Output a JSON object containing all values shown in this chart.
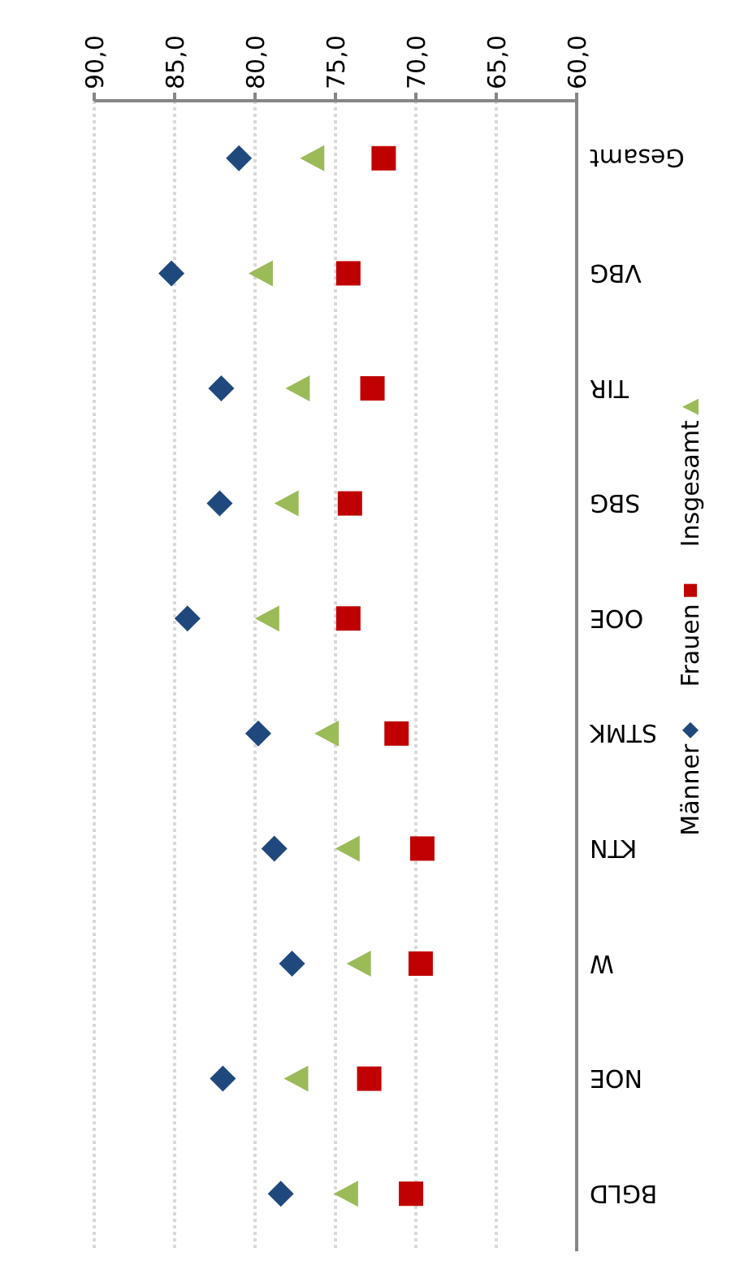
{
  "chart_data": {
    "type": "scatter",
    "orientation": "horizontal",
    "categories": [
      "Gesamt",
      "VBG",
      "TIR",
      "SBG",
      "OOE",
      "STMK",
      "KTN",
      "W",
      "NOE",
      "BGLD"
    ],
    "series": [
      {
        "name": "Männer",
        "color": "#1f497d",
        "marker": "diamond",
        "values": [
          81.0,
          85.2,
          82.1,
          82.2,
          84.2,
          79.8,
          78.8,
          77.7,
          82.0,
          78.4
        ]
      },
      {
        "name": "Frauen",
        "color": "#c00000",
        "marker": "square",
        "values": [
          72.0,
          74.2,
          72.7,
          74.1,
          74.2,
          71.2,
          69.6,
          69.7,
          72.9,
          70.3
        ]
      },
      {
        "name": "Insgesamt",
        "color": "#9bbb59",
        "marker": "triangle",
        "values": [
          76.4,
          79.6,
          77.3,
          78.0,
          79.2,
          75.5,
          74.2,
          73.5,
          77.4,
          74.3
        ]
      }
    ],
    "xlim": [
      90,
      60
    ],
    "xticks": [
      {
        "value": 90,
        "label": "90,0"
      },
      {
        "value": 85,
        "label": "85,0"
      },
      {
        "value": 80,
        "label": "80,0"
      },
      {
        "value": 75,
        "label": "75,0"
      },
      {
        "value": 70,
        "label": "70,0"
      },
      {
        "value": 65,
        "label": "65,0"
      },
      {
        "value": 60,
        "label": "60,0"
      }
    ],
    "grid": "x",
    "legend": "right"
  }
}
